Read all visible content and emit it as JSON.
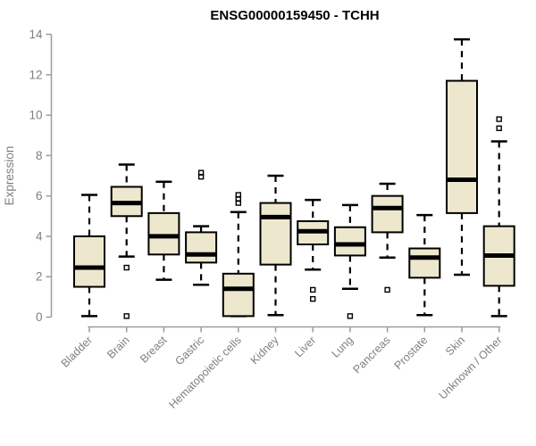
{
  "page": {
    "background": "#ffffff"
  },
  "chart_data": {
    "type": "boxplot",
    "title": "ENSG00000159450 - TCHH",
    "ylabel": "Expression",
    "xlabel": "",
    "ylim": [
      0,
      14
    ],
    "yticks": [
      0,
      2,
      4,
      6,
      8,
      10,
      12,
      14
    ],
    "grid": false,
    "legend": "none",
    "categories": [
      "Bladder",
      "Brain",
      "Breast",
      "Gastric",
      "Hematopoietic cells",
      "Kidney",
      "Liver",
      "Lung",
      "Pancreas",
      "Prostate",
      "Skin",
      "Unknown / Other"
    ],
    "series": [
      {
        "category": "Bladder",
        "whisker_low": 0.05,
        "q1": 1.5,
        "median": 2.45,
        "q3": 4.0,
        "whisker_high": 6.05,
        "outliers": []
      },
      {
        "category": "Brain",
        "whisker_low": 3.0,
        "q1": 5.0,
        "median": 5.65,
        "q3": 6.45,
        "whisker_high": 7.55,
        "outliers": [
          2.45,
          0.05
        ]
      },
      {
        "category": "Breast",
        "whisker_low": 1.85,
        "q1": 3.1,
        "median": 4.0,
        "q3": 5.15,
        "whisker_high": 6.7,
        "outliers": []
      },
      {
        "category": "Gastric",
        "whisker_low": 1.6,
        "q1": 2.7,
        "median": 3.1,
        "q3": 4.2,
        "whisker_high": 4.5,
        "outliers": [
          6.95,
          7.15
        ]
      },
      {
        "category": "Hematopoietic cells",
        "whisker_low": 0.05,
        "q1": 0.05,
        "median": 1.4,
        "q3": 2.15,
        "whisker_high": 5.2,
        "outliers": [
          5.65,
          5.85,
          6.05
        ]
      },
      {
        "category": "Kidney",
        "whisker_low": 0.1,
        "q1": 2.6,
        "median": 4.95,
        "q3": 5.65,
        "whisker_high": 7.0,
        "outliers": []
      },
      {
        "category": "Liver",
        "whisker_low": 2.35,
        "q1": 3.6,
        "median": 4.25,
        "q3": 4.75,
        "whisker_high": 5.8,
        "outliers": [
          1.35,
          0.9
        ]
      },
      {
        "category": "Lung",
        "whisker_low": 1.4,
        "q1": 3.05,
        "median": 3.6,
        "q3": 4.45,
        "whisker_high": 5.55,
        "outliers": [
          0.05
        ]
      },
      {
        "category": "Pancreas",
        "whisker_low": 2.95,
        "q1": 4.2,
        "median": 5.4,
        "q3": 6.0,
        "whisker_high": 6.6,
        "outliers": [
          1.35
        ]
      },
      {
        "category": "Prostate",
        "whisker_low": 0.1,
        "q1": 1.95,
        "median": 2.95,
        "q3": 3.4,
        "whisker_high": 5.05,
        "outliers": []
      },
      {
        "category": "Skin",
        "whisker_low": 2.1,
        "q1": 5.15,
        "median": 6.8,
        "q3": 11.7,
        "whisker_high": 13.75,
        "outliers": []
      },
      {
        "category": "Unknown / Other",
        "whisker_low": 0.05,
        "q1": 1.55,
        "median": 3.05,
        "q3": 4.5,
        "whisker_high": 8.7,
        "outliers": [
          9.35,
          9.8
        ]
      }
    ],
    "colors": {
      "box_fill": "#EDE7CD",
      "box_border": "#000000",
      "median": "#000000",
      "whisker": "#000000",
      "outlier": "#000000",
      "axis_line": "#9C9C9C",
      "tick_label": "#7F7F7F",
      "title": "#000000"
    }
  }
}
